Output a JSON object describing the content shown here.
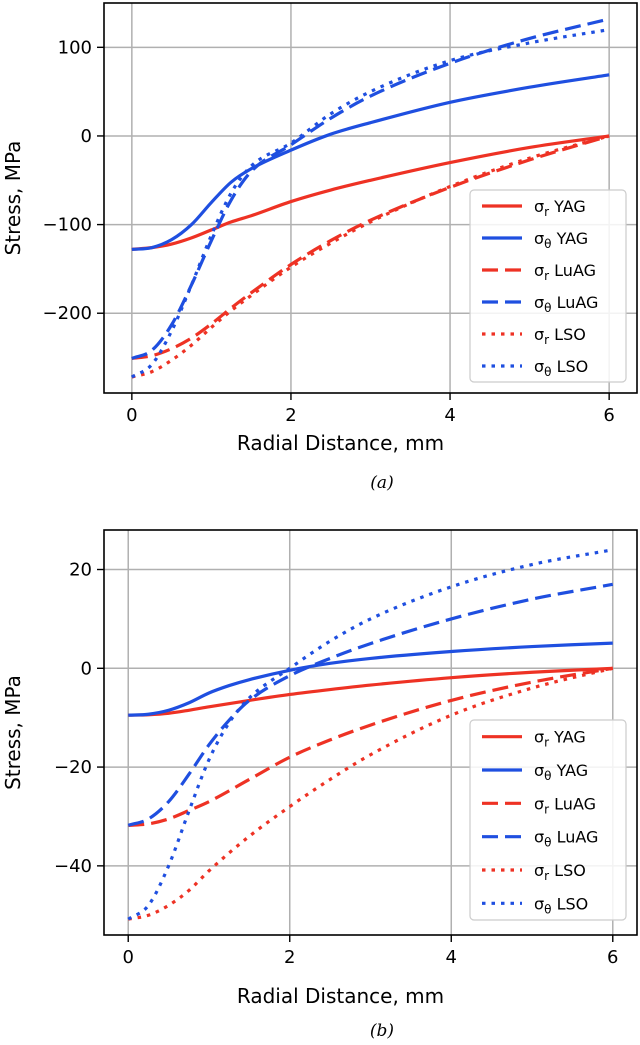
{
  "chart_data": [
    {
      "id": "a",
      "type": "line",
      "caption": "(a)",
      "xlabel": "Radial Distance, mm",
      "ylabel": "Stress, MPa",
      "xlim": [
        -0.35,
        6.35
      ],
      "ylim": [
        -290,
        150
      ],
      "xticks": [
        0,
        2,
        4,
        6
      ],
      "yticks": [
        -200,
        -100,
        0,
        100
      ],
      "ytick_labels": [
        "−200",
        "−100",
        "0",
        "100"
      ],
      "grid": true,
      "legend_position": "lower-right",
      "series": [
        {
          "name": "σr YAG",
          "base": "σ",
          "sub": "r",
          "suffix": " YAG",
          "color": "#ee3224",
          "style": "solid",
          "x": [
            0,
            0.25,
            0.5,
            0.75,
            1,
            1.25,
            1.5,
            2,
            2.5,
            3,
            4,
            5,
            6
          ],
          "y": [
            -128,
            -126,
            -122,
            -115,
            -106,
            -97,
            -90,
            -74,
            -61,
            -50,
            -30,
            -13,
            0
          ]
        },
        {
          "name": "σθ YAG",
          "base": "σ",
          "sub": "θ",
          "suffix": " YAG",
          "color": "#1f4fe0",
          "style": "solid",
          "x": [
            0,
            0.25,
            0.5,
            0.75,
            1,
            1.25,
            1.5,
            2,
            2.5,
            3,
            4,
            5,
            6
          ],
          "y": [
            -128,
            -126,
            -117,
            -100,
            -75,
            -52,
            -37,
            -16,
            2,
            15,
            38,
            55,
            69
          ]
        },
        {
          "name": "σr LuAG",
          "base": "σ",
          "sub": "r",
          "suffix": " LuAG",
          "color": "#ee3224",
          "style": "dashed",
          "x": [
            0,
            0.25,
            0.5,
            0.75,
            1,
            1.25,
            1.5,
            2,
            2.5,
            3,
            4,
            5,
            6
          ],
          "y": [
            -251,
            -248,
            -240,
            -228,
            -212,
            -194,
            -177,
            -145,
            -118,
            -95,
            -58,
            -27,
            0
          ]
        },
        {
          "name": "σθ LuAG",
          "base": "σ",
          "sub": "θ",
          "suffix": " LuAG",
          "color": "#1f4fe0",
          "style": "dashed",
          "x": [
            0,
            0.25,
            0.5,
            0.75,
            1,
            1.25,
            1.5,
            2,
            2.5,
            3,
            4,
            5,
            6
          ],
          "y": [
            -251,
            -242,
            -213,
            -168,
            -118,
            -72,
            -40,
            -10,
            20,
            45,
            82,
            110,
            132
          ]
        },
        {
          "name": "σr LSO",
          "base": "σ",
          "sub": "r",
          "suffix": " LSO",
          "color": "#ee3224",
          "style": "dotted",
          "x": [
            0,
            0.25,
            0.5,
            0.75,
            1,
            1.25,
            1.5,
            2,
            2.5,
            3,
            4,
            5,
            6
          ],
          "y": [
            -272,
            -266,
            -253,
            -236,
            -216,
            -197,
            -180,
            -148,
            -121,
            -97,
            -57,
            -25,
            0
          ]
        },
        {
          "name": "σθ LSO",
          "base": "σ",
          "sub": "θ",
          "suffix": " LSO",
          "color": "#1f4fe0",
          "style": "dotted",
          "x": [
            0,
            0.25,
            0.5,
            0.75,
            1,
            1.25,
            1.5,
            2,
            2.5,
            3,
            4,
            5,
            6
          ],
          "y": [
            -272,
            -258,
            -220,
            -168,
            -112,
            -64,
            -34,
            -8,
            25,
            50,
            85,
            105,
            120
          ]
        }
      ]
    },
    {
      "id": "b",
      "type": "line",
      "caption": "(b)",
      "xlabel": "Radial Distance, mm",
      "ylabel": "Stress, MPa",
      "xlim": [
        -0.3,
        6.3
      ],
      "ylim": [
        -54,
        28
      ],
      "xticks": [
        0,
        2,
        4,
        6
      ],
      "yticks": [
        -40,
        -20,
        0,
        20
      ],
      "ytick_labels": [
        "−40",
        "−20",
        "0",
        "20"
      ],
      "grid": true,
      "legend_position": "lower-right",
      "series": [
        {
          "name": "σr YAG",
          "base": "σ",
          "sub": "r",
          "suffix": " YAG",
          "color": "#ee3224",
          "style": "solid",
          "x": [
            0,
            0.25,
            0.5,
            0.75,
            1,
            1.5,
            2,
            2.5,
            3,
            4,
            5,
            6
          ],
          "y": [
            -9.5,
            -9.4,
            -9.1,
            -8.5,
            -7.8,
            -6.5,
            -5.3,
            -4.3,
            -3.4,
            -1.9,
            -0.8,
            0
          ]
        },
        {
          "name": "σθ YAG",
          "base": "σ",
          "sub": "θ",
          "suffix": " YAG",
          "color": "#1f4fe0",
          "style": "solid",
          "x": [
            0,
            0.25,
            0.5,
            0.75,
            1,
            1.25,
            1.5,
            2,
            2.5,
            3,
            4,
            5,
            6
          ],
          "y": [
            -9.5,
            -9.3,
            -8.5,
            -7.0,
            -5.0,
            -3.5,
            -2.3,
            -0.4,
            1.0,
            2.0,
            3.4,
            4.4,
            5.1
          ]
        },
        {
          "name": "σr LuAG",
          "base": "σ",
          "sub": "r",
          "suffix": " LuAG",
          "color": "#ee3224",
          "style": "dashed",
          "x": [
            0,
            0.25,
            0.5,
            0.75,
            1,
            1.5,
            2,
            2.5,
            3,
            4,
            5,
            6
          ],
          "y": [
            -31.8,
            -31.5,
            -30.5,
            -28.8,
            -27.0,
            -22.5,
            -18.0,
            -14.5,
            -11.5,
            -6.5,
            -2.8,
            0
          ]
        },
        {
          "name": "σθ LuAG",
          "base": "σ",
          "sub": "θ",
          "suffix": " LuAG",
          "color": "#1f4fe0",
          "style": "dashed",
          "x": [
            0,
            0.25,
            0.5,
            0.75,
            1,
            1.25,
            1.5,
            2,
            2.5,
            3,
            4,
            5,
            6
          ],
          "y": [
            -31.8,
            -30.5,
            -27.0,
            -21.5,
            -15.5,
            -10.5,
            -6.5,
            -1.5,
            2.0,
            5.0,
            10.0,
            14.0,
            17.0
          ]
        },
        {
          "name": "σr LSO",
          "base": "σ",
          "sub": "r",
          "suffix": " LSO",
          "color": "#ee3224",
          "style": "dotted",
          "x": [
            0,
            0.25,
            0.5,
            0.75,
            1,
            1.5,
            2,
            2.5,
            3,
            4,
            5,
            6
          ],
          "y": [
            -50.8,
            -50.0,
            -48.0,
            -45.0,
            -41.0,
            -34.0,
            -28.0,
            -22.5,
            -17.5,
            -9.5,
            -4.0,
            0
          ]
        },
        {
          "name": "σθ LSO",
          "base": "σ",
          "sub": "θ",
          "suffix": " LSO",
          "color": "#1f4fe0",
          "style": "dotted",
          "x": [
            0,
            0.25,
            0.5,
            0.75,
            1,
            1.25,
            1.5,
            2,
            2.5,
            3,
            4,
            5,
            6
          ],
          "y": [
            -50.8,
            -48.0,
            -40.0,
            -29.0,
            -18.5,
            -11.0,
            -6.0,
            0,
            5.5,
            10.0,
            16.5,
            21.0,
            24.0
          ]
        }
      ]
    }
  ]
}
